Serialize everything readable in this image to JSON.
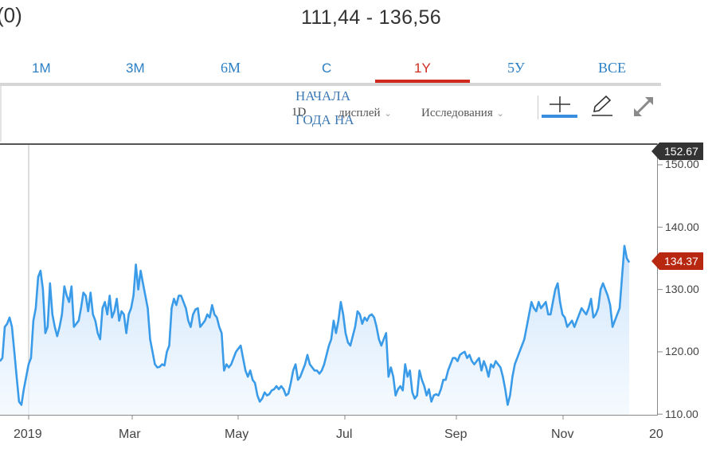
{
  "header": {
    "left_fragment": "(0)",
    "range_text": "111,44 - 136,56"
  },
  "tabs": [
    {
      "label": "1M",
      "active": false
    },
    {
      "label": "3M",
      "active": false
    },
    {
      "label": "6М",
      "active": false
    },
    {
      "label": "С",
      "active": false
    },
    {
      "label": "1Y",
      "active": true
    },
    {
      "label": "5У",
      "active": false
    },
    {
      "label": "ВСЕ",
      "active": false
    }
  ],
  "toolbar": {
    "start_of_year_line1": "НАЧАЛА",
    "start_of_year_line2": "ГОДА НА",
    "interval": "1D",
    "display_label": "дисплей",
    "studies_label": "Исследования",
    "icons": [
      "crosshair-icon",
      "pencil-icon",
      "expand-icon"
    ]
  },
  "colors": {
    "line": "#3a9be8",
    "active_tab": "#d02a1e",
    "tab": "#2b7fc4",
    "max_badge": "#333333",
    "current_badge": "#b8270f"
  },
  "badges": {
    "max": "152.67",
    "current": "134.37"
  },
  "chart_data": {
    "type": "area",
    "title": "",
    "xlabel": "",
    "ylabel": "",
    "ylim": [
      110,
      152.67
    ],
    "y_ticks": [
      "150.00",
      "140.00",
      "130.00",
      "120.00",
      "110.00"
    ],
    "x_ticks": [
      "2019",
      "Mar",
      "May",
      "Jul",
      "Sep",
      "Nov",
      "20"
    ],
    "grid": "vertical line at 2019",
    "series": [
      {
        "values": [
          118.5,
          119,
          124,
          124.5,
          125.5,
          124,
          120,
          116,
          112,
          111.5,
          114,
          116,
          118,
          119,
          125,
          127,
          132,
          133,
          130,
          123,
          124,
          131,
          126,
          124,
          122.5,
          124,
          126,
          130.5,
          129,
          128,
          130.5,
          124,
          124.5,
          125,
          127,
          129.5,
          129,
          126.5,
          129.5,
          126,
          125,
          123,
          122,
          127,
          128,
          126,
          129,
          125.5,
          126.5,
          128.5,
          125,
          126.5,
          126,
          123,
          126,
          127,
          129,
          134,
          130,
          133,
          131,
          129,
          127,
          122,
          120,
          118,
          117.5,
          117.6,
          118,
          117.8,
          120,
          121,
          127,
          128.5,
          127.5,
          129,
          129,
          128,
          127,
          125,
          124,
          126,
          126.8,
          127,
          124,
          124.5,
          125,
          126,
          125.5,
          127.5,
          126,
          125.5,
          124,
          123,
          117,
          118,
          117.5,
          118,
          119,
          120,
          120.5,
          121,
          119,
          117,
          116,
          117,
          115.5,
          115,
          113,
          112,
          112.5,
          113.5,
          113,
          113.2,
          113.8,
          114,
          114.5,
          114,
          114.5,
          114,
          113,
          113.3,
          115,
          117,
          118,
          115.5,
          116,
          117,
          118,
          119.5,
          118,
          117.5,
          117,
          117,
          116.5,
          117,
          118,
          119.5,
          121,
          122,
          125,
          123,
          125,
          128,
          126,
          123,
          121.5,
          121,
          122.5,
          124,
          126.5,
          126,
          124.5,
          125.5,
          125,
          125.8,
          126,
          125.5,
          124,
          122,
          121,
          122,
          123,
          116,
          117.5,
          116,
          113,
          114,
          114.5,
          113.8,
          118,
          116,
          117,
          113.5,
          112.5,
          113,
          117,
          115.5,
          114.5,
          113,
          114,
          112,
          113,
          113.2,
          113,
          114,
          115.5,
          115.5,
          117,
          118,
          119,
          119,
          118.5,
          119.5,
          119.8,
          120,
          119,
          119.5,
          118.5,
          118,
          118.5,
          119,
          117,
          118.5,
          117.5,
          116,
          118,
          117.5,
          118.5,
          118,
          117.5,
          116,
          114,
          111.5,
          113,
          116,
          118,
          119,
          120,
          121,
          122,
          124,
          126,
          128,
          127,
          126.5,
          128,
          127,
          127.5,
          128,
          126,
          126,
          128,
          130,
          131,
          128,
          126,
          125.5,
          124,
          124.5,
          125,
          124,
          125,
          126,
          127,
          126.5,
          126,
          127,
          128.5,
          125.5,
          126,
          127,
          130,
          131,
          130,
          129,
          127.5,
          124,
          125,
          126,
          127,
          132,
          137,
          135,
          134.37
        ]
      }
    ]
  }
}
